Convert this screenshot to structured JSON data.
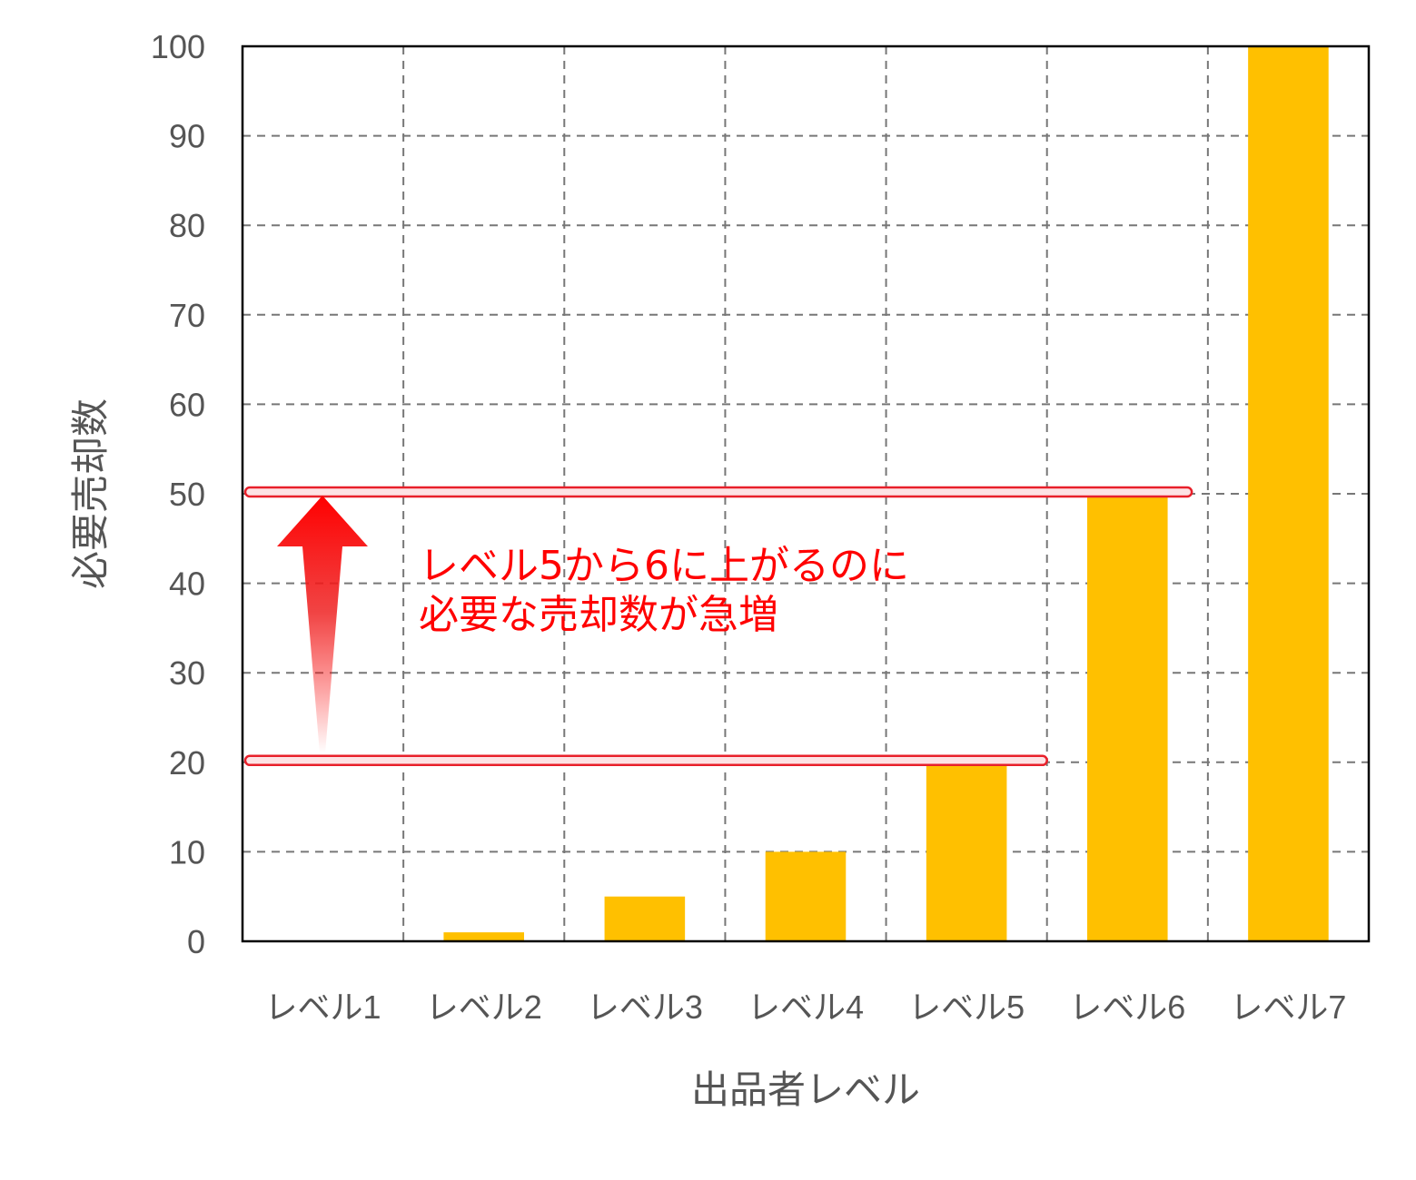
{
  "chart_data": {
    "type": "bar",
    "categories": [
      "レベル1",
      "レベル2",
      "レベル3",
      "レベル4",
      "レベル5",
      "レベル6",
      "レベル7"
    ],
    "values": [
      0,
      1,
      5,
      10,
      20,
      50,
      100
    ],
    "xlabel": "出品者レベル",
    "ylabel": "必要売却数",
    "ylim": [
      0,
      100
    ],
    "yticks": [
      "0",
      "10",
      "20",
      "30",
      "40",
      "50",
      "60",
      "70",
      "80",
      "90",
      "100"
    ],
    "grid": true,
    "bar_color": "#FFC000",
    "annotation": {
      "line1": "レベル5から6に上がるのに",
      "line2": "必要な売却数が急増",
      "color": "#FF0000",
      "from_value": 20,
      "to_value": 50
    }
  }
}
